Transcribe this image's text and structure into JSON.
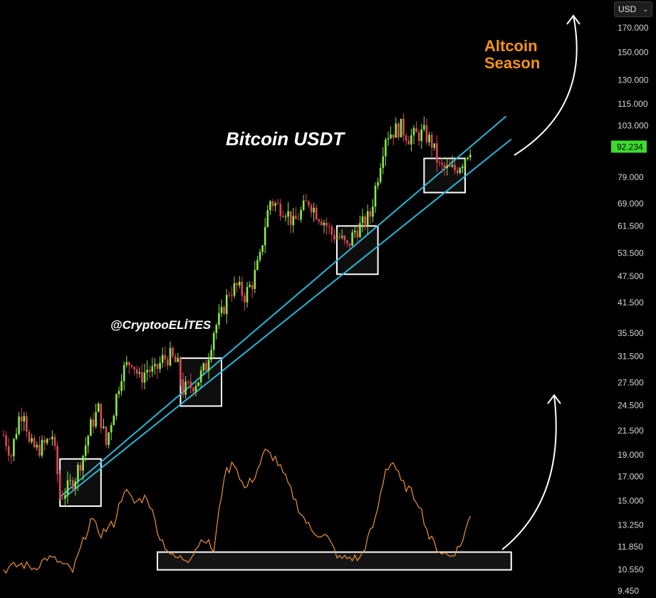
{
  "currency_selector": {
    "label": "USD",
    "chevron": "chevron-down-icon"
  },
  "colors": {
    "background": "#000000",
    "candle_up": "#8de84a",
    "candle_down": "#e0465a",
    "trend_line": "#29b6d8",
    "oscillator": "#f0923a",
    "annotation": "#ffffff",
    "accent": "#f7931a",
    "price_tag": "#3ddc2f"
  },
  "chart_data": {
    "type": "candlestick",
    "title": "Bitcoin USDT",
    "watermark": "@CryptooELİTES",
    "annotation": "Altcoin\nSeason",
    "scale": "log",
    "ylim": [
      9.45,
      185
    ],
    "current_price": "92.234",
    "price_axis_ticks": [
      "170.000",
      "150.000",
      "130.000",
      "115.000",
      "103.000",
      "92.234",
      "79.000",
      "69.000",
      "61.500",
      "53.500",
      "47.500",
      "41.500",
      "35.500",
      "31.500",
      "27.500",
      "24.500",
      "21.500",
      "19.000",
      "17.000",
      "15.000",
      "13.250",
      "11.850",
      "10.550",
      "9.450"
    ],
    "price_waypoints": [
      [
        0,
        21
      ],
      [
        3,
        19
      ],
      [
        6,
        23
      ],
      [
        8,
        24
      ],
      [
        10,
        20
      ],
      [
        13,
        19.5
      ],
      [
        16,
        20
      ],
      [
        19,
        21
      ],
      [
        22,
        15.3
      ],
      [
        25,
        16
      ],
      [
        28,
        17
      ],
      [
        31,
        19
      ],
      [
        34,
        22
      ],
      [
        37,
        24
      ],
      [
        40,
        20
      ],
      [
        43,
        24
      ],
      [
        46,
        29
      ],
      [
        48,
        30
      ],
      [
        50,
        31
      ],
      [
        53,
        28
      ],
      [
        56,
        29.5
      ],
      [
        59,
        29
      ],
      [
        62,
        31
      ],
      [
        65,
        31.5
      ],
      [
        68,
        30
      ],
      [
        70,
        26.5
      ],
      [
        73,
        27
      ],
      [
        76,
        28
      ],
      [
        79,
        30
      ],
      [
        82,
        36
      ],
      [
        85,
        39
      ],
      [
        88,
        44
      ],
      [
        91,
        45
      ],
      [
        94,
        43
      ],
      [
        97,
        46
      ],
      [
        100,
        52
      ],
      [
        102,
        62
      ],
      [
        104,
        70
      ],
      [
        107,
        68
      ],
      [
        110,
        67
      ],
      [
        113,
        62
      ],
      [
        116,
        66
      ],
      [
        119,
        70
      ],
      [
        122,
        66
      ],
      [
        125,
        63
      ],
      [
        128,
        59
      ],
      [
        131,
        58
      ],
      [
        134,
        55
      ],
      [
        137,
        60
      ],
      [
        140,
        62
      ],
      [
        143,
        65
      ],
      [
        146,
        80
      ],
      [
        149,
        98
      ],
      [
        152,
        100
      ],
      [
        155,
        102
      ],
      [
        158,
        97
      ],
      [
        161,
        98
      ],
      [
        164,
        99
      ],
      [
        167,
        94
      ],
      [
        170,
        83
      ],
      [
        173,
        82
      ],
      [
        176,
        82
      ],
      [
        179,
        86
      ],
      [
        182,
        92
      ]
    ],
    "oscillator_waypoints": [
      [
        0,
        12
      ],
      [
        7,
        20
      ],
      [
        12,
        15
      ],
      [
        17,
        30
      ],
      [
        21,
        25
      ],
      [
        27,
        10
      ],
      [
        34,
        85
      ],
      [
        38,
        65
      ],
      [
        43,
        80
      ],
      [
        47,
        130
      ],
      [
        51,
        110
      ],
      [
        56,
        120
      ],
      [
        61,
        60
      ],
      [
        66,
        30
      ],
      [
        72,
        28
      ],
      [
        78,
        60
      ],
      [
        82,
        40
      ],
      [
        86,
        150
      ],
      [
        90,
        170
      ],
      [
        94,
        130
      ],
      [
        98,
        150
      ],
      [
        102,
        185
      ],
      [
        106,
        175
      ],
      [
        110,
        145
      ],
      [
        116,
        95
      ],
      [
        120,
        70
      ],
      [
        126,
        60
      ],
      [
        131,
        28
      ],
      [
        135,
        30
      ],
      [
        139,
        28
      ],
      [
        145,
        85
      ],
      [
        149,
        160
      ],
      [
        152,
        170
      ],
      [
        155,
        140
      ],
      [
        158,
        130
      ],
      [
        162,
        110
      ],
      [
        166,
        60
      ],
      [
        170,
        40
      ],
      [
        174,
        32
      ],
      [
        178,
        46
      ],
      [
        182,
        90
      ]
    ],
    "oscillator_range": [
      0,
      200
    ],
    "trend_lines": [
      {
        "from": [
          22,
          15.3
        ],
        "to": [
          196,
          108
        ]
      },
      {
        "from": [
          24,
          15.3
        ],
        "to": [
          198,
          96
        ]
      }
    ],
    "support_zones": [
      {
        "x": [
          22,
          38
        ],
        "y": [
          14.6,
          18.6
        ]
      },
      {
        "x": [
          69,
          85
        ],
        "y": [
          24.4,
          31.2
        ]
      },
      {
        "x": [
          130,
          146
        ],
        "y": [
          48.0,
          61.5
        ]
      },
      {
        "x": [
          164,
          180
        ],
        "y": [
          73.0,
          87.0
        ]
      }
    ],
    "oscillator_zone": {
      "x": [
        60,
        198
      ],
      "y": [
        12,
        38
      ]
    }
  }
}
